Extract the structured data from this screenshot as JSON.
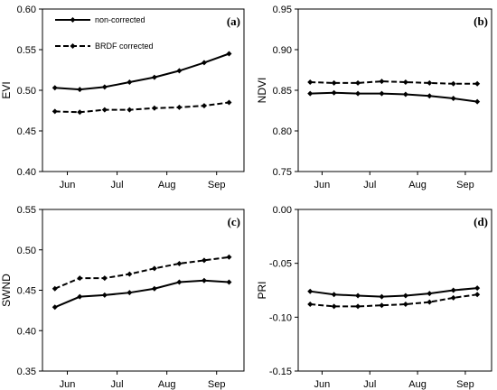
{
  "chart_data": [
    {
      "type": "line",
      "panel_label": "(a)",
      "ylabel": "EVI",
      "ylim": [
        0.4,
        0.6
      ],
      "yticks": [
        "0.40",
        "0.45",
        "0.50",
        "0.55",
        "0.60"
      ],
      "xtick_labels": [
        "Jun",
        "Jul",
        "Aug",
        "Sep"
      ],
      "x": [
        1,
        2,
        3,
        4,
        5,
        6,
        7,
        8
      ],
      "series": [
        {
          "name": "non-corrected",
          "style": "solid",
          "values": [
            0.503,
            0.501,
            0.504,
            0.51,
            0.516,
            0.524,
            0.534,
            0.545
          ]
        },
        {
          "name": "BRDF corrected",
          "style": "dashed",
          "values": [
            0.474,
            0.473,
            0.476,
            0.476,
            0.478,
            0.479,
            0.481,
            0.485
          ]
        }
      ],
      "legend": {
        "position": "top-left",
        "entries": [
          "non-corrected",
          "BRDF corrected"
        ]
      }
    },
    {
      "type": "line",
      "panel_label": "(b)",
      "ylabel": "NDVI",
      "ylim": [
        0.75,
        0.95
      ],
      "yticks": [
        "0.75",
        "0.80",
        "0.85",
        "0.90",
        "0.95"
      ],
      "xtick_labels": [
        "Jun",
        "Jul",
        "Aug",
        "Sep"
      ],
      "x": [
        1,
        2,
        3,
        4,
        5,
        6,
        7,
        8
      ],
      "series": [
        {
          "style": "solid",
          "values": [
            0.846,
            0.847,
            0.846,
            0.846,
            0.845,
            0.843,
            0.84,
            0.836
          ]
        },
        {
          "style": "dashed",
          "values": [
            0.86,
            0.859,
            0.859,
            0.861,
            0.86,
            0.859,
            0.858,
            0.858
          ]
        }
      ]
    },
    {
      "type": "line",
      "panel_label": "(c)",
      "ylabel": "SWND",
      "ylim": [
        0.35,
        0.55
      ],
      "yticks": [
        "0.35",
        "0.40",
        "0.45",
        "0.50",
        "0.55"
      ],
      "xtick_labels": [
        "Jun",
        "Jul",
        "Aug",
        "Sep"
      ],
      "x": [
        1,
        2,
        3,
        4,
        5,
        6,
        7,
        8
      ],
      "series": [
        {
          "style": "solid",
          "values": [
            0.429,
            0.442,
            0.444,
            0.447,
            0.452,
            0.46,
            0.462,
            0.46
          ]
        },
        {
          "style": "dashed",
          "values": [
            0.452,
            0.465,
            0.465,
            0.47,
            0.477,
            0.483,
            0.487,
            0.491
          ]
        }
      ]
    },
    {
      "type": "line",
      "panel_label": "(d)",
      "ylabel": "PRI",
      "ylim": [
        -0.15,
        0.0
      ],
      "yticks": [
        "-0.15",
        "-0.10",
        "-0.05",
        "0.00"
      ],
      "xtick_labels": [
        "Jun",
        "Jul",
        "Aug",
        "Sep"
      ],
      "x": [
        1,
        2,
        3,
        4,
        5,
        6,
        7,
        8
      ],
      "series": [
        {
          "style": "solid",
          "values": [
            -0.076,
            -0.079,
            -0.08,
            -0.081,
            -0.08,
            -0.078,
            -0.075,
            -0.073
          ]
        },
        {
          "style": "dashed",
          "values": [
            -0.088,
            -0.09,
            -0.09,
            -0.089,
            -0.088,
            -0.086,
            -0.082,
            -0.079
          ]
        }
      ]
    }
  ],
  "colors": {
    "line": "#000000",
    "axis": "#000000",
    "background": "#ffffff"
  }
}
